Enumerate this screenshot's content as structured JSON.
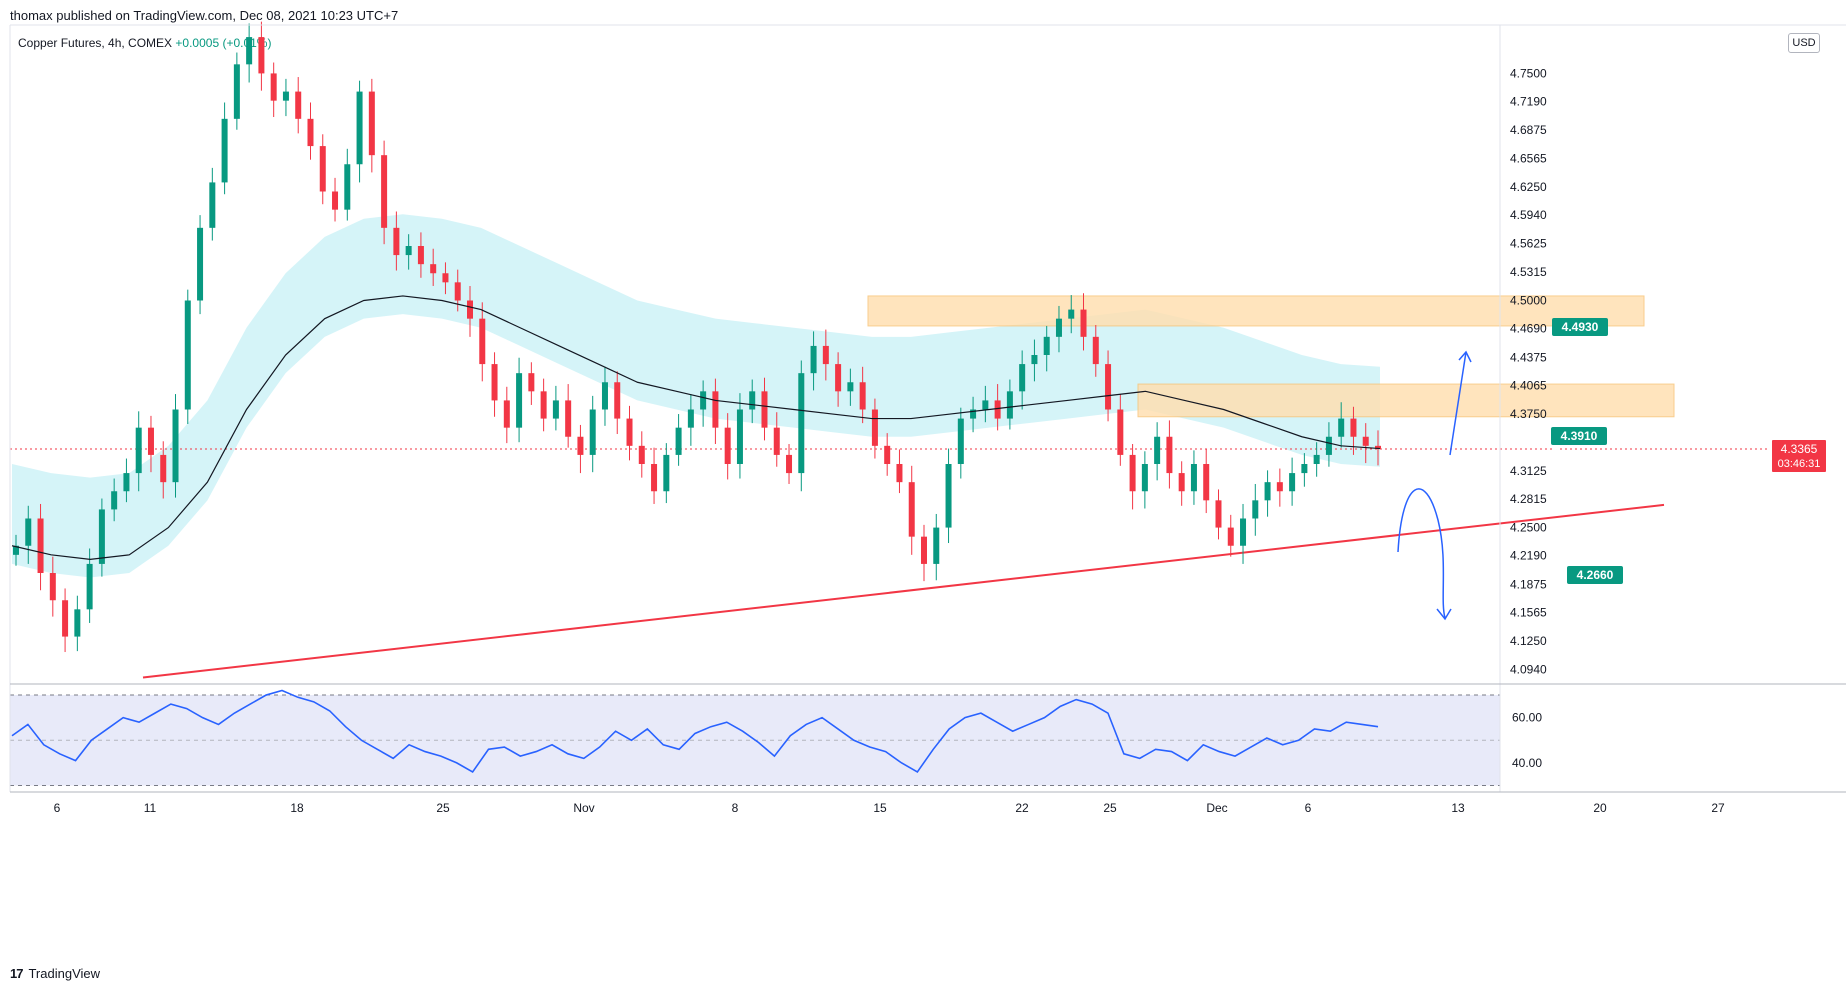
{
  "header": {
    "publisher": "thomax published on TradingView.com, Dec 08, 2021 10:23 UTC+7",
    "symbol": "Copper Futures, 4h, COMEX",
    "change": "+0.0005 (+0.01%)",
    "currency": "USD"
  },
  "footer": {
    "brand": "TradingView",
    "logo_glyph": "17"
  },
  "colors": {
    "up": "#089981",
    "down": "#f23645",
    "ma": "#131722",
    "band": "#b2ebf2",
    "zone": "#ffe0b2",
    "trendline": "#f23645",
    "arrow": "#2962ff",
    "rsi": "#2962ff",
    "rsi_band": "#e8eaf9",
    "tag": "#089981",
    "price_label": "#f23645"
  },
  "price_label": {
    "value": "4.3365",
    "countdown": "03:46:31"
  },
  "annotations": [
    {
      "label": "4.4930"
    },
    {
      "label": "4.3910"
    },
    {
      "label": "4.2660"
    }
  ],
  "chart_data": {
    "type": "candlestick",
    "interval": "4h",
    "y_ticks": [
      "4.7500",
      "4.7190",
      "4.6875",
      "4.6565",
      "4.6250",
      "4.5940",
      "4.5625",
      "4.5315",
      "4.5000",
      "4.4690",
      "4.4375",
      "4.4065",
      "4.3750",
      "4.3125",
      "4.2815",
      "4.2500",
      "4.2190",
      "4.1875",
      "4.1565",
      "4.1250",
      "4.0940"
    ],
    "ylim": [
      4.08,
      4.8
    ],
    "x_ticks": [
      "6",
      "11",
      "18",
      "25",
      "Nov",
      "8",
      "15",
      "22",
      "25",
      "Dec",
      "6",
      "13",
      "20",
      "27"
    ],
    "close_path": [
      4.23,
      4.26,
      4.2,
      4.17,
      4.13,
      4.16,
      4.21,
      4.27,
      4.29,
      4.31,
      4.36,
      4.33,
      4.3,
      4.38,
      4.5,
      4.58,
      4.63,
      4.7,
      4.76,
      4.79,
      4.75,
      4.72,
      4.73,
      4.7,
      4.67,
      4.62,
      4.6,
      4.65,
      4.73,
      4.66,
      4.58,
      4.55,
      4.56,
      4.54,
      4.53,
      4.52,
      4.5,
      4.48,
      4.43,
      4.39,
      4.36,
      4.42,
      4.4,
      4.37,
      4.39,
      4.35,
      4.33,
      4.38,
      4.41,
      4.37,
      4.34,
      4.32,
      4.29,
      4.33,
      4.36,
      4.38,
      4.4,
      4.36,
      4.32,
      4.38,
      4.4,
      4.36,
      4.33,
      4.31,
      4.42,
      4.45,
      4.43,
      4.4,
      4.41,
      4.38,
      4.34,
      4.32,
      4.3,
      4.24,
      4.21,
      4.25,
      4.32,
      4.37,
      4.38,
      4.39,
      4.37,
      4.4,
      4.43,
      4.44,
      4.46,
      4.48,
      4.49,
      4.46,
      4.43,
      4.38,
      4.33,
      4.29,
      4.32,
      4.35,
      4.31,
      4.29,
      4.32,
      4.28,
      4.25,
      4.23,
      4.26,
      4.28,
      4.3,
      4.29,
      4.31,
      4.32,
      4.33,
      4.35,
      4.37,
      4.35,
      4.34,
      4.3365
    ],
    "ma_path": [
      4.23,
      4.22,
      4.215,
      4.22,
      4.25,
      4.3,
      4.38,
      4.44,
      4.48,
      4.5,
      4.505,
      4.5,
      4.49,
      4.47,
      4.45,
      4.43,
      4.41,
      4.4,
      4.39,
      4.385,
      4.38,
      4.375,
      4.37,
      4.37,
      4.375,
      4.38,
      4.385,
      4.39,
      4.395,
      4.4,
      4.39,
      4.38,
      4.365,
      4.35,
      4.34,
      4.337
    ],
    "levels": [
      {
        "name": "resistance-upper",
        "low": 4.472,
        "high": 4.505
      },
      {
        "name": "resistance-lower",
        "low": 4.372,
        "high": 4.408
      }
    ],
    "trendline": {
      "from_date": "Oct 11",
      "from_value": 4.085,
      "to_date": "Dec 23",
      "to_value": 4.275
    },
    "rsi": {
      "y_ticks": [
        "60.00",
        "40.00"
      ],
      "ylim": [
        28,
        74
      ],
      "upper": 70,
      "lower": 30,
      "values": [
        52,
        57,
        48,
        44,
        41,
        50,
        55,
        60,
        58,
        62,
        66,
        64,
        60,
        57,
        62,
        66,
        70,
        72,
        69,
        67,
        63,
        56,
        50,
        46,
        42,
        48,
        45,
        43,
        40,
        36,
        46,
        47,
        43,
        45,
        48,
        44,
        42,
        47,
        54,
        50,
        55,
        48,
        46,
        53,
        56,
        58,
        54,
        49,
        43,
        52,
        57,
        60,
        55,
        50,
        47,
        45,
        40,
        36,
        46,
        55,
        60,
        62,
        58,
        54,
        57,
        60,
        65,
        68,
        66,
        62,
        44,
        42,
        46,
        45,
        41,
        48,
        45,
        43,
        47,
        51,
        48,
        50,
        55,
        54,
        58,
        57,
        56
      ]
    }
  }
}
